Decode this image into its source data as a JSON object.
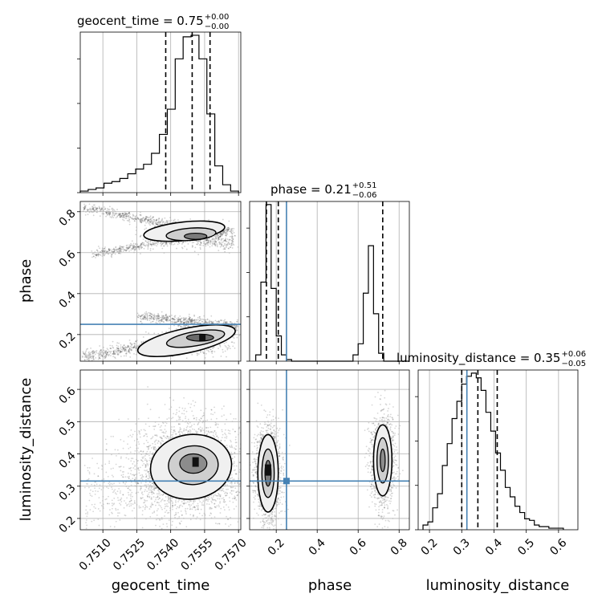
{
  "chart_data": {
    "type": "corner",
    "parameters": [
      "geocent_time",
      "phase",
      "luminosity_distance"
    ],
    "axis_labels": {
      "geocent_time": "geocent_time",
      "phase": "phase",
      "luminosity_distance": "luminosity_distance"
    },
    "titles": [
      {
        "param": "geocent_time",
        "text": "geocent_time = 0.75",
        "sup": "+0.00",
        "sub": "−0.00"
      },
      {
        "param": "phase",
        "text": "phase = 0.21",
        "sup": "+0.51",
        "sub": "−0.06"
      },
      {
        "param": "luminosity_distance",
        "text": "luminosity_distance = 0.35",
        "sup": "+0.06",
        "sub": "−0.05"
      }
    ],
    "ranges": {
      "geocent_time": [
        0.75,
        0.7571
      ],
      "phase": [
        0.07,
        0.85
      ],
      "luminosity_distance": [
        0.165,
        0.66
      ]
    },
    "ticks": {
      "geocent_time": {
        "values": [
          0.751,
          0.7525,
          0.754,
          0.7555,
          0.757
        ],
        "labels": [
          "0.7510",
          "0.7525",
          "0.7540",
          "0.7555",
          "0.7570"
        ]
      },
      "phase": {
        "values": [
          0.2,
          0.4,
          0.6,
          0.8
        ],
        "labels": [
          "0.2",
          "0.4",
          "0.6",
          "0.8"
        ]
      },
      "luminosity_distance": {
        "values": [
          0.2,
          0.3,
          0.4,
          0.5,
          0.6
        ],
        "labels": [
          "0.2",
          "0.3",
          "0.4",
          "0.5",
          "0.6"
        ]
      }
    },
    "truths": {
      "phase": 0.25,
      "luminosity_distance": 0.316
    },
    "quantiles": {
      "geocent_time": [
        0.75378,
        0.75495,
        0.75574
      ],
      "phase": [
        0.152,
        0.21,
        0.72
      ],
      "luminosity_distance": [
        0.3,
        0.35,
        0.41
      ]
    },
    "histograms": {
      "geocent_time": {
        "edges": [
          0.75,
          0.75035,
          0.7507,
          0.75105,
          0.7514,
          0.75175,
          0.7521,
          0.75245,
          0.7528,
          0.75315,
          0.7535,
          0.75385,
          0.7542,
          0.75455,
          0.7549,
          0.75525,
          0.7556,
          0.75595,
          0.7563,
          0.75665,
          0.757
        ],
        "counts": [
          0.01,
          0.02,
          0.03,
          0.06,
          0.07,
          0.09,
          0.12,
          0.15,
          0.18,
          0.25,
          0.37,
          0.53,
          0.85,
          0.99,
          1.0,
          0.85,
          0.5,
          0.17,
          0.05,
          0.01
        ]
      },
      "phase": {
        "edges": [
          0.1,
          0.125,
          0.15,
          0.175,
          0.2,
          0.225,
          0.25,
          0.275,
          0.3,
          0.325,
          0.35,
          0.375,
          0.4,
          0.425,
          0.45,
          0.475,
          0.5,
          0.525,
          0.55,
          0.575,
          0.6,
          0.625,
          0.65,
          0.675,
          0.7,
          0.725,
          0.75,
          0.775,
          0.8,
          0.825,
          0.85
        ],
        "counts": [
          0.04,
          0.5,
          0.99,
          0.46,
          0.16,
          0.04,
          0.01,
          0,
          0,
          0,
          0,
          0,
          0,
          0,
          0,
          0,
          0,
          0,
          0,
          0.04,
          0.11,
          0.43,
          0.73,
          0.3,
          0.05,
          0,
          0,
          0,
          0,
          0
        ]
      },
      "luminosity_distance": {
        "edges": [
          0.18,
          0.195,
          0.21,
          0.225,
          0.24,
          0.255,
          0.27,
          0.285,
          0.3,
          0.315,
          0.33,
          0.345,
          0.36,
          0.375,
          0.39,
          0.405,
          0.42,
          0.435,
          0.45,
          0.465,
          0.48,
          0.495,
          0.51,
          0.525,
          0.54,
          0.555,
          0.57,
          0.585,
          0.6,
          0.615
        ],
        "counts": [
          0.03,
          0.05,
          0.14,
          0.23,
          0.41,
          0.55,
          0.71,
          0.82,
          0.93,
          0.98,
          1.0,
          0.97,
          0.89,
          0.75,
          0.63,
          0.49,
          0.38,
          0.27,
          0.21,
          0.15,
          0.11,
          0.07,
          0.06,
          0.03,
          0.02,
          0.02,
          0.01,
          0.01,
          0.01
        ]
      }
    },
    "grid": true
  }
}
